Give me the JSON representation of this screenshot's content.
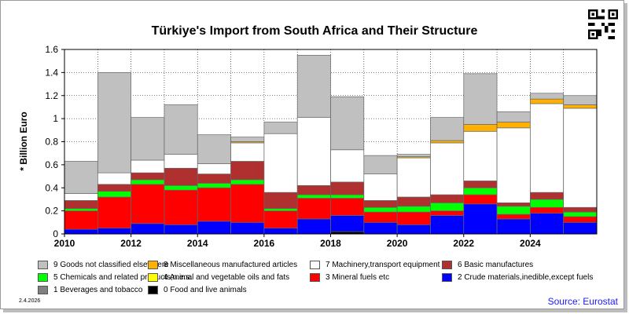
{
  "chart_data": {
    "type": "bar",
    "stacked": true,
    "title": "Türkiye's Import from South Africa and Their Structure",
    "ylabel": "* Billion Euro",
    "ylim": [
      0,
      1.6
    ],
    "yticks": [
      "0",
      "0.2",
      "0.4",
      "0.6",
      "0.8",
      "1",
      "1.2",
      "1.4",
      "1.6"
    ],
    "ytick_values": [
      0,
      0.2,
      0.4,
      0.6,
      0.8,
      1.0,
      1.2,
      1.4,
      1.6
    ],
    "categories": [
      "2010",
      "2011",
      "2012",
      "2013",
      "2014",
      "2015",
      "2016",
      "2017",
      "2018",
      "2019",
      "2020",
      "2021",
      "2022",
      "2023",
      "2024",
      "2025"
    ],
    "xtick_labels": [
      "2010",
      "2012",
      "2014",
      "2016",
      "2018",
      "2020",
      "2022",
      "2024"
    ],
    "grid": true,
    "series": [
      {
        "name": "0 Food and live animals",
        "color": "#000000",
        "values": [
          0,
          0,
          0,
          0,
          0,
          0,
          0,
          0,
          0.02,
          0,
          0,
          0,
          0,
          0,
          0,
          0
        ]
      },
      {
        "name": "1 Beverages and tobacco",
        "color": "#808080",
        "values": [
          0,
          0,
          0,
          0,
          0,
          0,
          0,
          0,
          0,
          0,
          0,
          0,
          0,
          0,
          0,
          0
        ]
      },
      {
        "name": "2 Crude materials,inedible,except fuels",
        "color": "#0000ff",
        "values": [
          0.04,
          0.05,
          0.09,
          0.08,
          0.11,
          0.1,
          0.05,
          0.13,
          0.14,
          0.1,
          0.08,
          0.16,
          0.26,
          0.13,
          0.18,
          0.1
        ]
      },
      {
        "name": "3 Mineral fuels etc",
        "color": "#ff0000",
        "values": [
          0.16,
          0.27,
          0.34,
          0.3,
          0.29,
          0.33,
          0.15,
          0.18,
          0.15,
          0.09,
          0.11,
          0.04,
          0.08,
          0.04,
          0.05,
          0.05
        ]
      },
      {
        "name": "4 Animal and vegetable oils and fats",
        "color": "#ffff00",
        "values": [
          0,
          0,
          0,
          0,
          0,
          0,
          0,
          0,
          0,
          0,
          0,
          0,
          0,
          0,
          0,
          0
        ]
      },
      {
        "name": "5 Chemicals and related products,n.e.s.",
        "color": "#00ff00",
        "values": [
          0.02,
          0.05,
          0.04,
          0.04,
          0.04,
          0.04,
          0.02,
          0.03,
          0.03,
          0.04,
          0.05,
          0.07,
          0.06,
          0.07,
          0.07,
          0.04
        ]
      },
      {
        "name": "6 Basic manufactures",
        "color": "#b03030",
        "values": [
          0.07,
          0.06,
          0.06,
          0.15,
          0.08,
          0.16,
          0.14,
          0.08,
          0.11,
          0.06,
          0.08,
          0.07,
          0.06,
          0.03,
          0.06,
          0.04
        ]
      },
      {
        "name": "7 Machinery,transport equipment",
        "color": "#ffffff",
        "values": [
          0.06,
          0.1,
          0.11,
          0.12,
          0.09,
          0.16,
          0.51,
          0.59,
          0.28,
          0.23,
          0.34,
          0.45,
          0.43,
          0.65,
          0.77,
          0.86
        ]
      },
      {
        "name": "8 Miscellaneous manufactured articles",
        "color": "#ffb000",
        "values": [
          0,
          0,
          0,
          0,
          0,
          0.01,
          0,
          0,
          0,
          0,
          0.01,
          0.02,
          0.06,
          0.05,
          0.04,
          0.03
        ]
      },
      {
        "name": "9 Goods not classified elsewhere",
        "color": "#c0c0c0",
        "values": [
          0.28,
          0.87,
          0.37,
          0.43,
          0.25,
          0.04,
          0.1,
          0.54,
          0.46,
          0.16,
          0.02,
          0.2,
          0.44,
          0.09,
          0.05,
          0.08
        ]
      }
    ]
  },
  "date": "2.4.2026",
  "source": "Source: Eurostat",
  "legend_rows": [
    [
      {
        "series": 9,
        "label": "9 Goods not classified elsewhere"
      },
      {
        "series": 8,
        "label": "8 Miscellaneous manufactured articles"
      },
      {
        "series": 7,
        "label": "7 Machinery,transport equipment"
      },
      {
        "series": 6,
        "label": "6 Basic manufactures"
      }
    ],
    [
      {
        "series": 5,
        "label": "5 Chemicals and related products,n.e.s."
      },
      {
        "series": 4,
        "label": "4 Animal and vegetable oils and fats"
      },
      {
        "series": 3,
        "label": "3 Mineral fuels etc"
      },
      {
        "series": 2,
        "label": "2 Crude materials,inedible,except fuels"
      }
    ],
    [
      {
        "series": 1,
        "label": "1 Beverages and tobacco"
      },
      {
        "series": 0,
        "label": "0 Food and live animals"
      }
    ]
  ]
}
